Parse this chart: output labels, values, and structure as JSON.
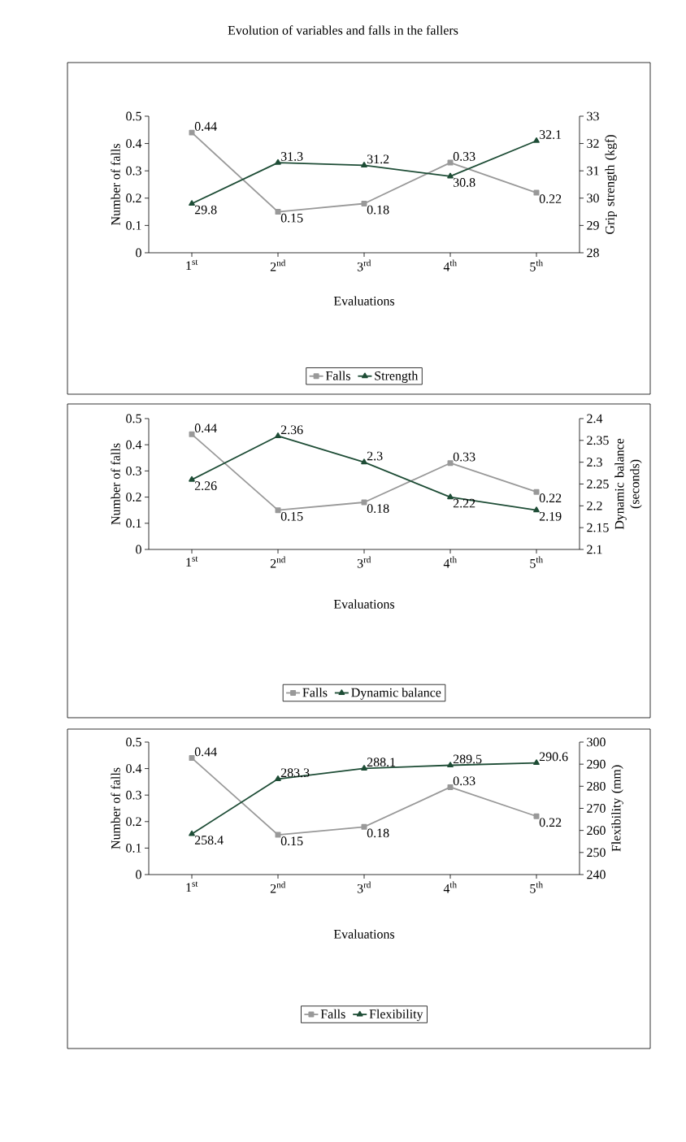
{
  "chart_data": [
    {
      "type": "line",
      "title": "Evolution of variables and falls in the fallers",
      "xlabel": "Evaluations",
      "ylabel": "Number of falls",
      "y2label": "Grip strength (kgf)",
      "categories": [
        "1$^{st}$",
        "2$^{nd}$",
        "3$^{rd}$",
        "4$^{th}$",
        "5$^{th}$"
      ],
      "series": [
        {
          "name": "Falls",
          "color": "#999999",
          "marker": "square",
          "values": [
            0.44,
            0.15,
            0.18,
            0.33,
            0.22
          ]
        },
        {
          "name": "Strength",
          "color": "#1e4d36",
          "marker": "triangle",
          "axis": "y2",
          "values": [
            29.8,
            31.3,
            31.2,
            30.8,
            32.1
          ]
        }
      ],
      "ylim": [
        0,
        0.5
      ],
      "yticks": [
        0,
        0.1,
        0.2,
        0.3,
        0.4,
        0.5
      ],
      "y2lim": [
        28,
        33
      ],
      "y2ticks": [
        28,
        29,
        30,
        31,
        32,
        33
      ],
      "data_labels": true,
      "legend": "bottom"
    },
    {
      "type": "line",
      "xlabel": "Evaluations",
      "ylabel": "Number of falls",
      "y2label": "Dynamic balance (seconds)",
      "categories": [
        "1$^{st}$",
        "2$^{nd}$",
        "3$^{rd}$",
        "4$^{th}$",
        "5$^{th}$"
      ],
      "series": [
        {
          "name": "Falls",
          "color": "#999999",
          "marker": "square",
          "values": [
            0.44,
            0.15,
            0.18,
            0.33,
            0.22
          ]
        },
        {
          "name": "Dynamic balance",
          "color": "#1e4d36",
          "marker": "triangle",
          "axis": "y2",
          "values": [
            2.26,
            2.36,
            2.3,
            2.22,
            2.19
          ]
        }
      ],
      "ylim": [
        0,
        0.5
      ],
      "yticks": [
        0,
        0.1,
        0.2,
        0.3,
        0.4,
        0.5
      ],
      "y2lim": [
        2.1,
        2.4
      ],
      "y2ticks": [
        2.1,
        2.15,
        2.2,
        2.25,
        2.3,
        2.35,
        2.4
      ],
      "data_labels": true,
      "legend": "bottom"
    },
    {
      "type": "line",
      "xlabel": "Evaluations",
      "ylabel": "Number of falls",
      "y2label": "Flexibility (mm)",
      "categories": [
        "1$^{st}$",
        "2$^{nd}$",
        "3$^{rd}$",
        "4$^{th}$",
        "5$^{th}$"
      ],
      "series": [
        {
          "name": "Falls",
          "color": "#999999",
          "marker": "square",
          "values": [
            0.44,
            0.15,
            0.18,
            0.33,
            0.22
          ]
        },
        {
          "name": "Flexibility",
          "color": "#1e4d36",
          "marker": "triangle",
          "axis": "y2",
          "values": [
            258.4,
            283.3,
            288.1,
            289.5,
            290.6
          ]
        }
      ],
      "ylim": [
        0,
        0.5
      ],
      "yticks": [
        0,
        0.1,
        0.2,
        0.3,
        0.4,
        0.5
      ],
      "y2lim": [
        240,
        300
      ],
      "y2ticks": [
        240,
        250,
        260,
        270,
        280,
        290,
        300
      ],
      "data_labels": true,
      "legend": "bottom"
    }
  ]
}
